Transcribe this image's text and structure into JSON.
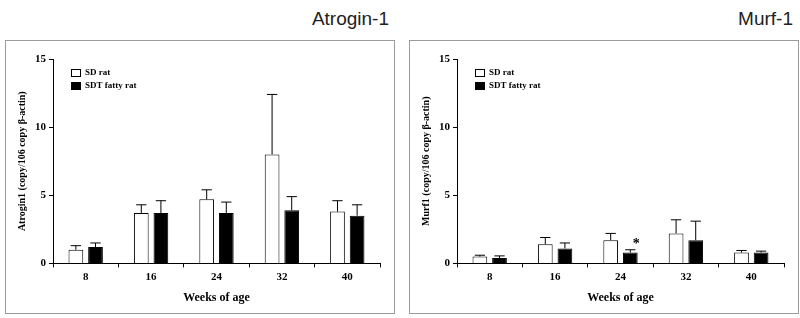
{
  "chart_data": [
    {
      "type": "bar",
      "title": "Atrogin-1",
      "x_label": "Weeks of age",
      "y_label": "Atrogin1 (copy/106 copy β-actin)",
      "categories": [
        "8",
        "16",
        "24",
        "32",
        "40"
      ],
      "series": [
        {
          "name": "SD rat",
          "color": "#ffffff",
          "values": [
            1.0,
            3.7,
            4.7,
            8.0,
            3.8
          ],
          "errors": [
            0.3,
            0.6,
            0.7,
            4.4,
            0.8
          ]
        },
        {
          "name": "SDT fatty rat",
          "color": "#000000",
          "values": [
            1.2,
            3.7,
            3.7,
            3.9,
            3.5
          ],
          "errors": [
            0.3,
            0.9,
            0.8,
            1.0,
            0.8
          ]
        }
      ],
      "ylim": [
        0,
        15
      ],
      "yticks": [
        0,
        5,
        10,
        15
      ],
      "grid": false,
      "legend": "top-left"
    },
    {
      "type": "bar",
      "title": "Murf-1",
      "x_label": "Weeks of age",
      "y_label": "Murf1 (copy/106 copy β-actin)",
      "categories": [
        "8",
        "16",
        "24",
        "32",
        "40"
      ],
      "series": [
        {
          "name": "SD rat",
          "color": "#ffffff",
          "values": [
            0.5,
            1.4,
            1.7,
            2.2,
            0.8
          ],
          "errors": [
            0.1,
            0.5,
            0.5,
            1.0,
            0.15
          ]
        },
        {
          "name": "SDT fatty rat",
          "color": "#000000",
          "values": [
            0.4,
            1.1,
            0.8,
            1.7,
            0.8
          ],
          "errors": [
            0.15,
            0.4,
            0.2,
            1.4,
            0.1
          ]
        }
      ],
      "annotations": [
        {
          "text": "*",
          "category": "24",
          "series": "SDT fatty rat"
        }
      ],
      "ylim": [
        0,
        15
      ],
      "yticks": [
        0,
        5,
        10,
        15
      ],
      "grid": false,
      "legend": "top-left"
    }
  ]
}
